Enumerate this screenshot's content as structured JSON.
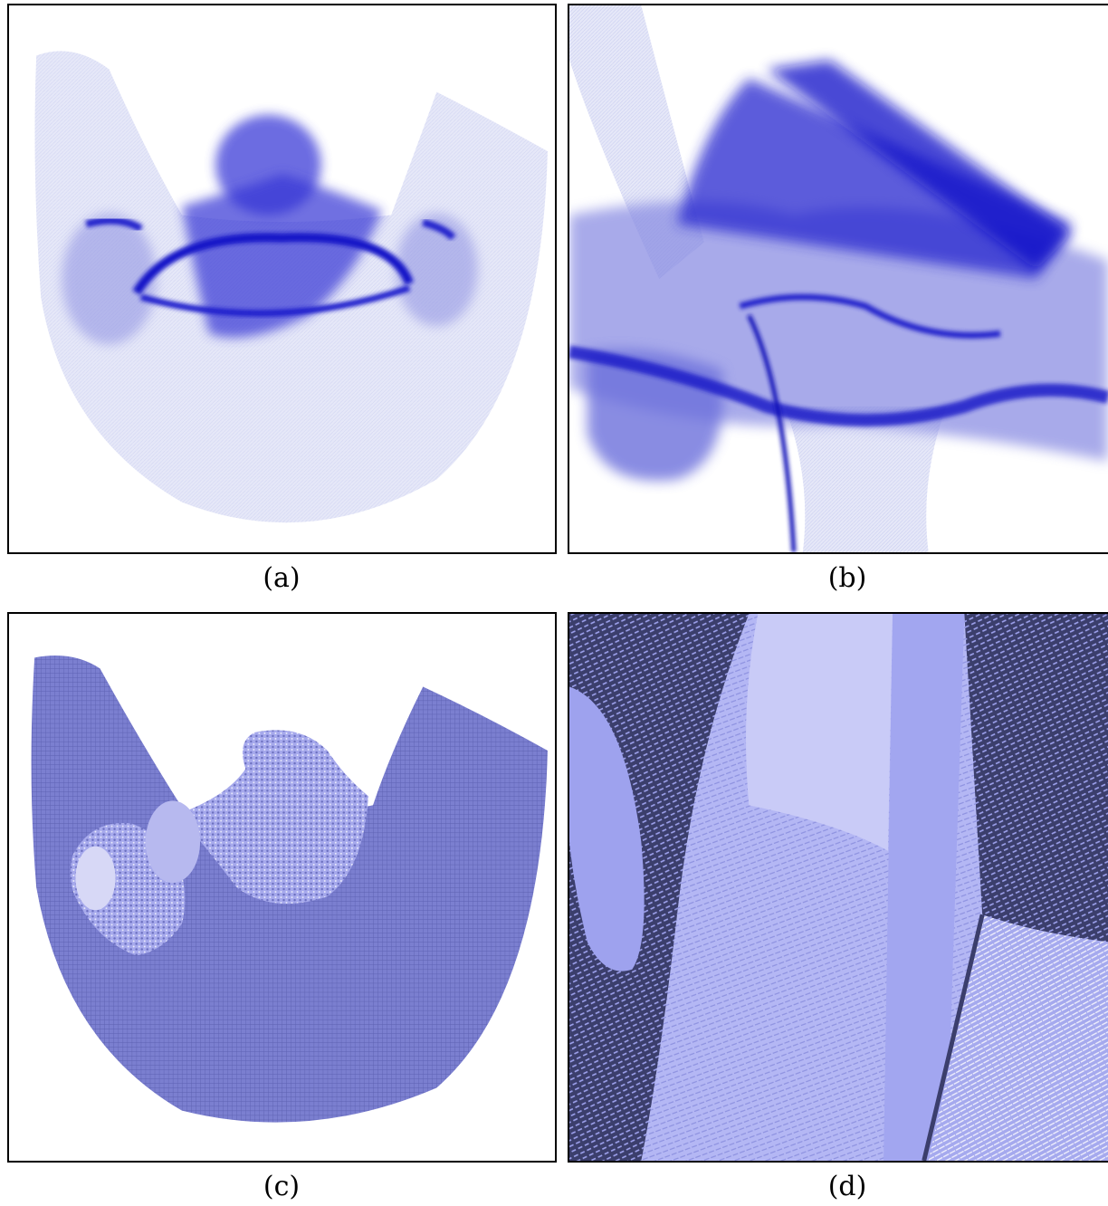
{
  "figure": {
    "panels": [
      {
        "id": "a",
        "caption": "(a)"
      },
      {
        "id": "b",
        "caption": "(b)"
      },
      {
        "id": "c",
        "caption": "(c)"
      },
      {
        "id": "d",
        "caption": "(d)"
      }
    ]
  },
  "colors": {
    "volume_blue": "#1a1ad0",
    "volume_pale": "#e4e6f7",
    "surface_mid": "#7b7fd0",
    "surface_light": "#b9bcf3",
    "surface_dark": "#3b3e6c"
  }
}
